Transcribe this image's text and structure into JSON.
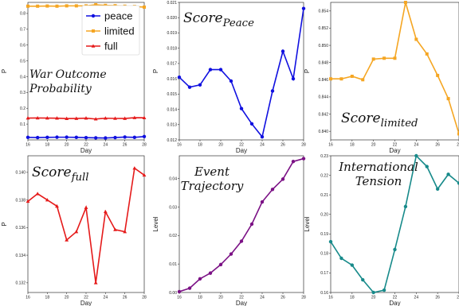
{
  "chart_data": [
    {
      "id": "outcome",
      "type": "line",
      "title": "War Outcome Probability",
      "title_lines": [
        "War Outcome",
        "Probability"
      ],
      "xlabel": "Day",
      "ylabel": "P",
      "x": [
        16,
        17,
        18,
        19,
        20,
        21,
        22,
        23,
        24,
        25,
        26,
        27,
        28
      ],
      "xlim": [
        16,
        28
      ],
      "ylim": [
        0.0,
        0.87
      ],
      "yticks": [
        0.1,
        0.2,
        0.3,
        0.4,
        0.5,
        0.6,
        0.7,
        0.8
      ],
      "ytick_labels": [
        "0.1",
        "0.2",
        "0.3",
        "0.4",
        "0.5",
        "0.6",
        "0.7",
        "0.8"
      ],
      "legend": "top-right",
      "series": [
        {
          "name": "peace",
          "color": "#1010e0",
          "marker": "circle",
          "values": [
            0.016,
            0.015,
            0.016,
            0.017,
            0.017,
            0.016,
            0.014,
            0.013,
            0.012,
            0.015,
            0.018,
            0.016,
            0.021
          ]
        },
        {
          "name": "limited",
          "color": "#f5a623",
          "marker": "square",
          "values": [
            0.846,
            0.846,
            0.847,
            0.846,
            0.848,
            0.848,
            0.848,
            0.855,
            0.851,
            0.849,
            0.846,
            0.844,
            0.84
          ]
        },
        {
          "name": "full",
          "color": "#e51a1a",
          "marker": "triangle",
          "values": [
            0.138,
            0.1385,
            0.138,
            0.1375,
            0.135,
            0.1357,
            0.1375,
            0.132,
            0.137,
            0.1358,
            0.1356,
            0.1403,
            0.1398
          ]
        }
      ]
    },
    {
      "id": "peace",
      "type": "line",
      "title": "Score",
      "title_sub": "Peace",
      "xlabel": "Day",
      "ylabel": "P",
      "x": [
        16,
        17,
        18,
        19,
        20,
        21,
        22,
        23,
        24,
        25,
        26,
        27,
        28
      ],
      "xlim": [
        16,
        28
      ],
      "ylim": [
        0.012,
        0.021
      ],
      "yticks": [
        0.012,
        0.013,
        0.014,
        0.015,
        0.016,
        0.017,
        0.018,
        0.019,
        0.02,
        0.021
      ],
      "ytick_labels": [
        "0.012",
        "0.013",
        "0.014",
        "0.015",
        "0.016",
        "0.017",
        "0.018",
        "0.019",
        "0.020",
        "0.021"
      ],
      "series": [
        {
          "color": "#1010e0",
          "marker": "circle",
          "values": [
            0.0161,
            0.01545,
            0.0156,
            0.0166,
            0.0166,
            0.01585,
            0.01405,
            0.01305,
            0.0122,
            0.0152,
            0.0178,
            0.016,
            0.0206
          ]
        }
      ]
    },
    {
      "id": "limited",
      "type": "line",
      "title": "Score",
      "title_sub": "limited",
      "xlabel": "Day",
      "ylabel": "P",
      "x": [
        16,
        17,
        18,
        19,
        20,
        21,
        22,
        23,
        24,
        25,
        26,
        27,
        28
      ],
      "xlim": [
        16,
        28
      ],
      "ylim": [
        0.839,
        0.855
      ],
      "yticks": [
        0.84,
        0.842,
        0.844,
        0.846,
        0.848,
        0.85,
        0.852,
        0.854
      ],
      "ytick_labels": [
        "0.840",
        "0.842",
        "0.844",
        "0.846",
        "0.848",
        "0.850",
        "0.852",
        "0.854"
      ],
      "series": [
        {
          "color": "#f5a623",
          "marker": "square",
          "values": [
            0.8461,
            0.8461,
            0.8464,
            0.846,
            0.8484,
            0.8485,
            0.8485,
            0.855,
            0.8507,
            0.849,
            0.8465,
            0.8438,
            0.8397
          ]
        }
      ]
    },
    {
      "id": "full",
      "type": "line",
      "title": "Score",
      "title_sub": "full",
      "xlabel": "Day",
      "ylabel": "P",
      "x": [
        16,
        17,
        18,
        19,
        20,
        21,
        22,
        23,
        24,
        25,
        26,
        27,
        28
      ],
      "xlim": [
        16,
        28
      ],
      "ylim": [
        0.1313,
        0.1412
      ],
      "yticks": [
        0.132,
        0.134,
        0.136,
        0.138,
        0.14
      ],
      "ytick_labels": [
        "0.132",
        "0.134",
        "0.136",
        "0.138",
        "0.140"
      ],
      "series": [
        {
          "color": "#e51a1a",
          "marker": "triangle",
          "values": [
            0.1379,
            0.13845,
            0.138,
            0.13755,
            0.1351,
            0.1357,
            0.13745,
            0.132,
            0.13715,
            0.13585,
            0.1357,
            0.1403,
            0.1398
          ]
        }
      ]
    },
    {
      "id": "event",
      "type": "line",
      "title": "Event Trajectory",
      "title_lines": [
        "Event",
        "Trajectory"
      ],
      "xlabel": "Day",
      "ylabel": "Level",
      "x": [
        16,
        17,
        18,
        19,
        20,
        21,
        22,
        23,
        24,
        25,
        26,
        27,
        28
      ],
      "xlim": [
        16,
        28
      ],
      "ylim": [
        0.0,
        0.048
      ],
      "yticks": [
        0.0,
        0.01,
        0.02,
        0.03,
        0.04
      ],
      "ytick_labels": [
        "0.00",
        "0.01",
        "0.02",
        "0.03",
        "0.04"
      ],
      "series": [
        {
          "color": "#7b1185",
          "marker": "circle",
          "values": [
            0.0003,
            0.0015,
            0.0048,
            0.0068,
            0.0098,
            0.0135,
            0.018,
            0.024,
            0.0318,
            0.0362,
            0.0398,
            0.046,
            0.047
          ]
        }
      ]
    },
    {
      "id": "tension",
      "type": "line",
      "title": "International Tension",
      "title_lines": [
        "International",
        "Tension"
      ],
      "xlabel": "Day",
      "ylabel": "Level",
      "x": [
        16,
        17,
        18,
        19,
        20,
        21,
        22,
        23,
        24,
        25,
        26,
        27,
        28
      ],
      "xlim": [
        16,
        28
      ],
      "ylim": [
        0.16,
        0.23
      ],
      "yticks": [
        0.16,
        0.17,
        0.18,
        0.19,
        0.2,
        0.21,
        0.22,
        0.23
      ],
      "ytick_labels": [
        "0.16",
        "0.17",
        "0.18",
        "0.19",
        "0.20",
        "0.21",
        "0.22",
        "0.23"
      ],
      "series": [
        {
          "color": "#178a8a",
          "marker": "circle",
          "values": [
            0.186,
            0.1775,
            0.174,
            0.1665,
            0.16,
            0.1612,
            0.182,
            0.204,
            0.23,
            0.2245,
            0.213,
            0.2205,
            0.216
          ]
        }
      ]
    }
  ]
}
